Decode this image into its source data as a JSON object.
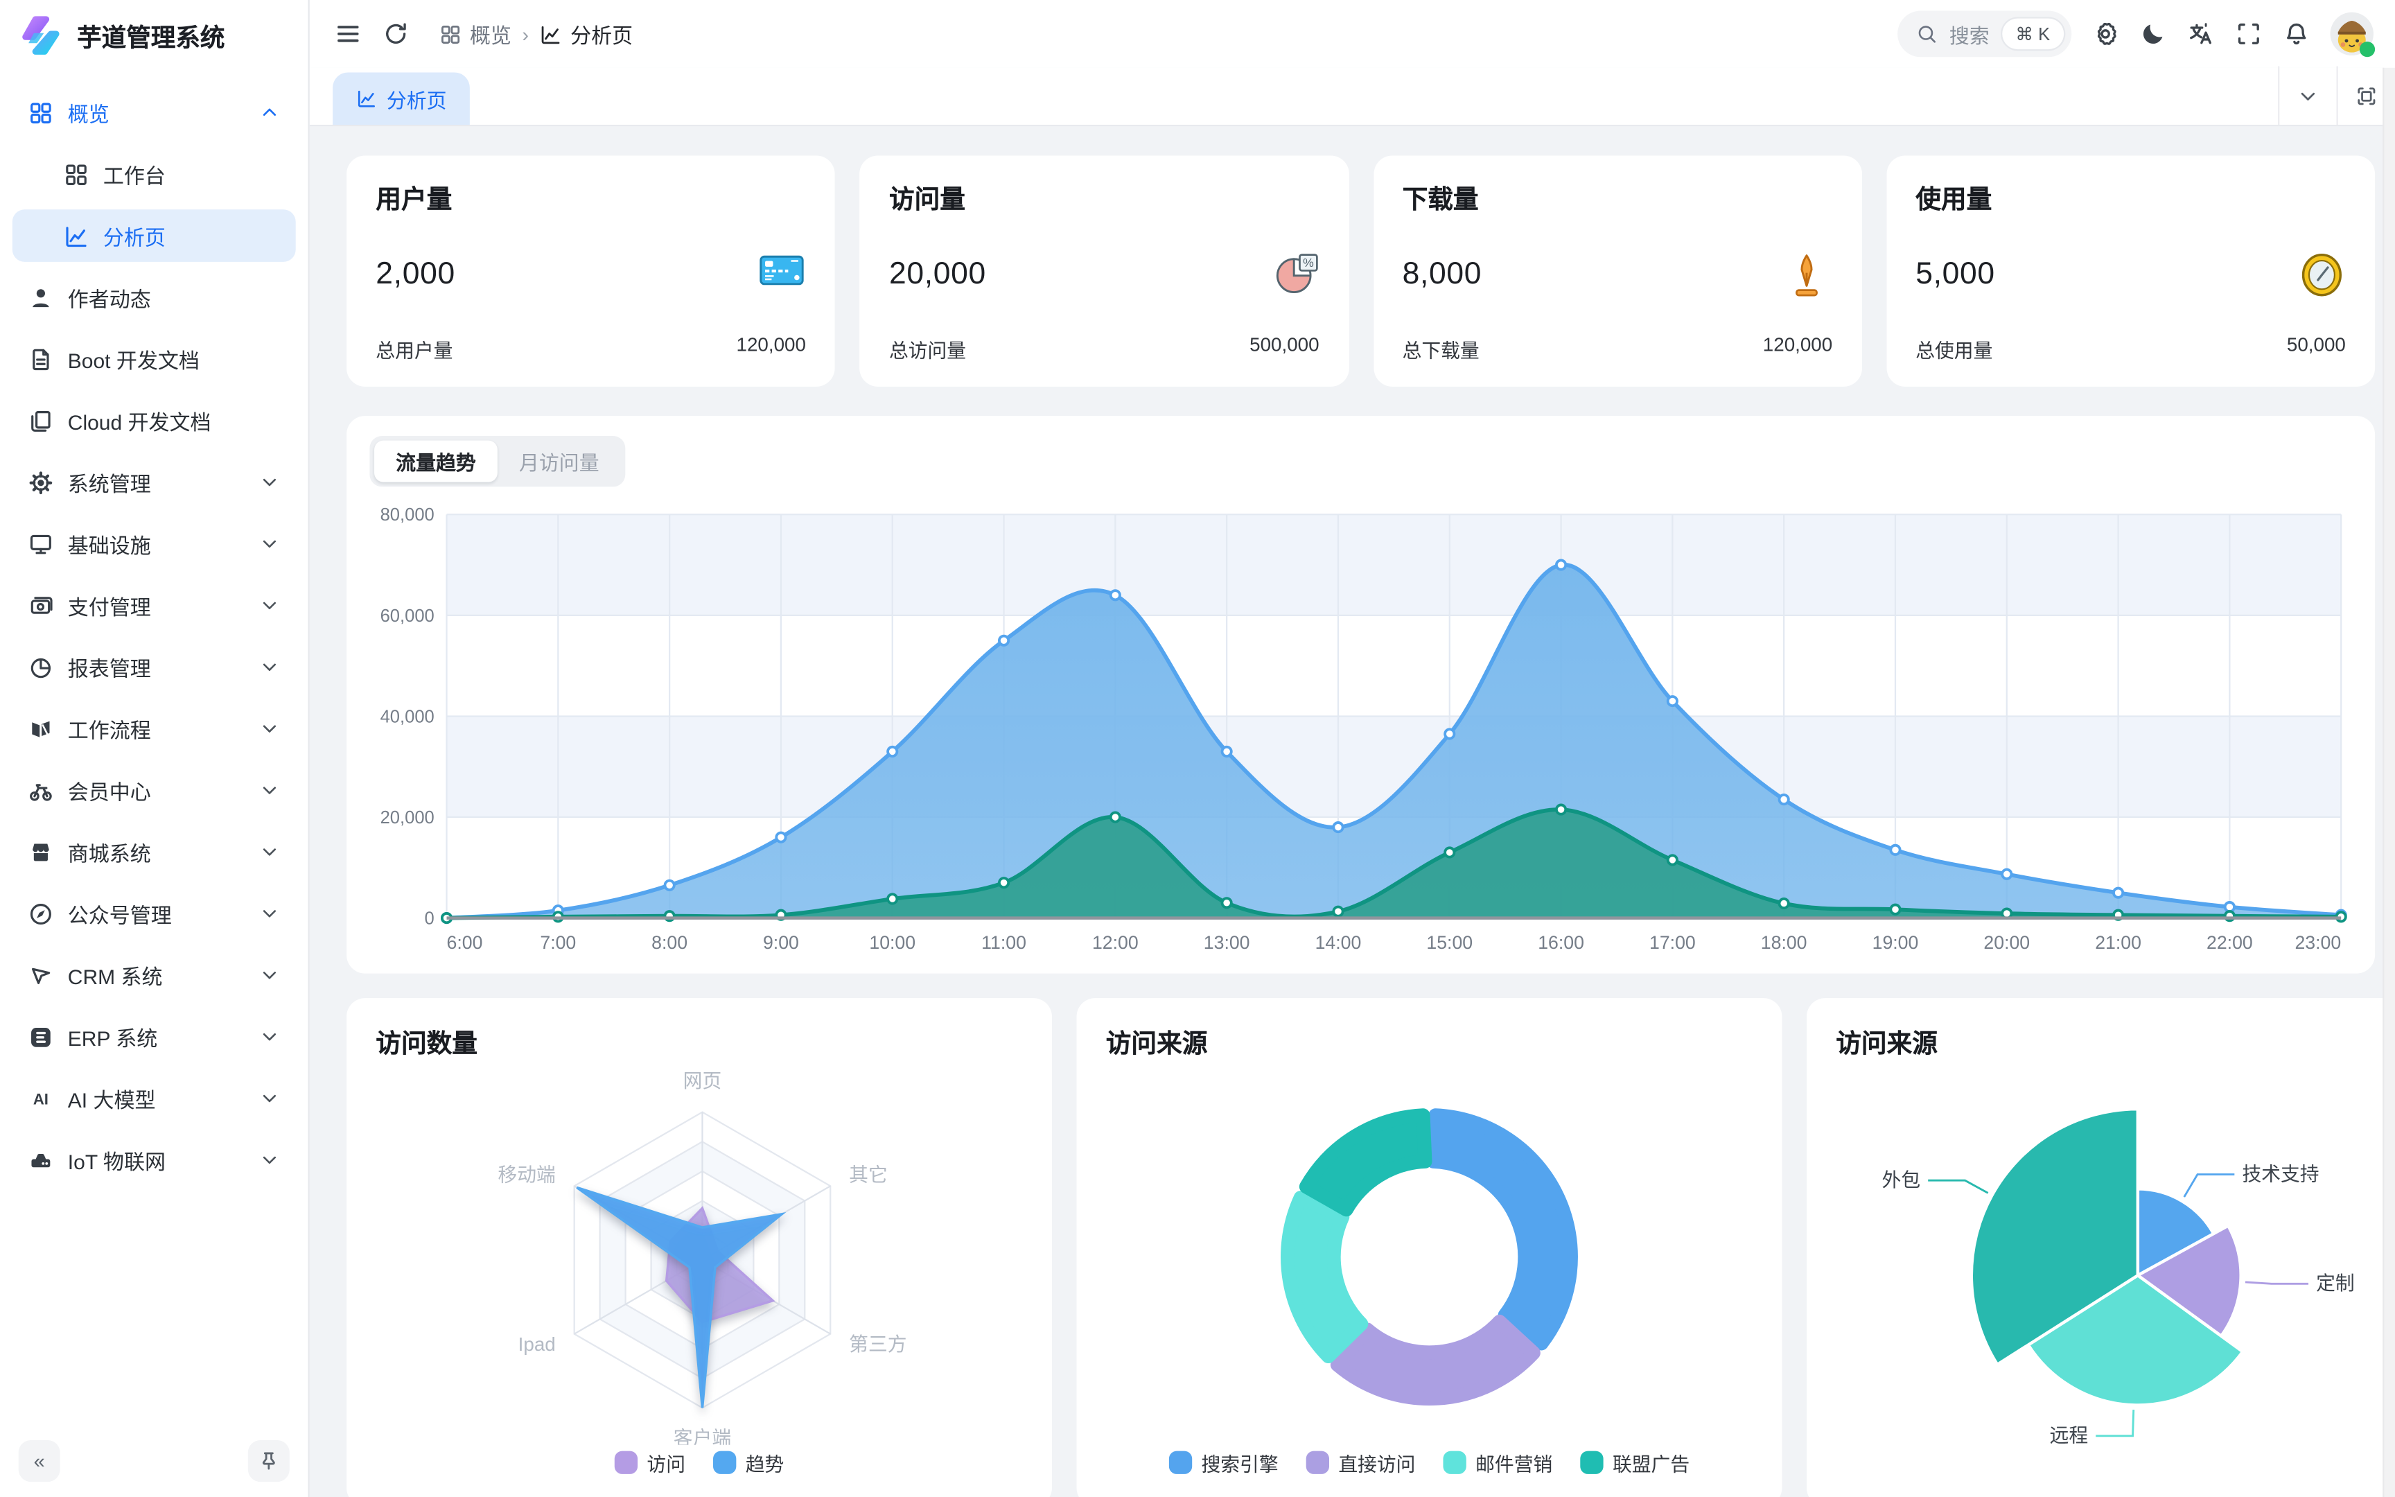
{
  "theme": {
    "accent": "#1b6ef3",
    "accent_soft": "#e3eefc",
    "tab_bg": "#dceafc",
    "page_bg": "#f1f3f6",
    "topbar_bg": "#ffffff",
    "sidebar_bg": "#ffffff",
    "status_dot": "#25c06a"
  },
  "app": {
    "title": "芋道管理系统",
    "logo_icon": "yudao-logo"
  },
  "sidebar": {
    "items": [
      {
        "label": "概览",
        "icon": "grid-icon",
        "expanded": true,
        "active_trail": true,
        "children": [
          {
            "label": "工作台",
            "icon": "workbench-icon"
          },
          {
            "label": "分析页",
            "icon": "analysis-chart-icon",
            "selected": true
          }
        ]
      },
      {
        "label": "作者动态",
        "icon": "user-icon"
      },
      {
        "label": "Boot 开发文档",
        "icon": "document-icon"
      },
      {
        "label": "Cloud 开发文档",
        "icon": "documents-icon"
      },
      {
        "label": "系统管理",
        "icon": "gear-icon",
        "collapsible": true
      },
      {
        "label": "基础设施",
        "icon": "monitor-icon",
        "collapsible": true
      },
      {
        "label": "支付管理",
        "icon": "payment-icon",
        "collapsible": true
      },
      {
        "label": "报表管理",
        "icon": "pie-icon",
        "collapsible": true
      },
      {
        "label": "工作流程",
        "icon": "workflow-icon",
        "collapsible": true
      },
      {
        "label": "会员中心",
        "icon": "member-bike-icon",
        "collapsible": true
      },
      {
        "label": "商城系统",
        "icon": "mall-icon",
        "collapsible": true
      },
      {
        "label": "公众号管理",
        "icon": "compass-icon",
        "collapsible": true
      },
      {
        "label": "CRM 系统",
        "icon": "crm-arrow-icon",
        "collapsible": true
      },
      {
        "label": "ERP 系统",
        "icon": "erp-badge-icon",
        "collapsible": true
      },
      {
        "label": "AI 大模型",
        "icon": "ai-icon",
        "collapsible": true
      },
      {
        "label": "IoT 物联网",
        "icon": "iot-device-icon",
        "collapsible": true
      }
    ],
    "collapse_label": "«",
    "pin_icon": "pin-icon"
  },
  "topbar": {
    "icons_left": [
      "menu-icon",
      "refresh-icon"
    ],
    "breadcrumb": [
      {
        "label": "概览",
        "icon": "grid-icon"
      },
      {
        "label": "分析页",
        "icon": "analysis-chart-icon"
      }
    ],
    "breadcrumb_separator": "›",
    "search": {
      "placeholder": "搜索",
      "shortcut": "⌘ K",
      "icon": "search-icon"
    },
    "icons_right": [
      "settings-gear-icon",
      "moon-icon",
      "translate-icon",
      "fullscreen-icon",
      "bell-icon"
    ],
    "avatar": {
      "name": "avatar",
      "status": "online"
    }
  },
  "tabbar": {
    "active_tab": {
      "label": "分析页",
      "icon": "analysis-chart-icon"
    },
    "tools": [
      "chevron-down-icon",
      "maximize-icon"
    ]
  },
  "stats": [
    {
      "title": "用户量",
      "value": "2,000",
      "icon": "credit-card-icon",
      "footer_label": "总用户量",
      "footer_value": "120,000"
    },
    {
      "title": "访问量",
      "value": "20,000",
      "icon": "pie-percent-icon",
      "footer_label": "总访问量",
      "footer_value": "500,000"
    },
    {
      "title": "下载量",
      "value": "8,000",
      "icon": "download-arrow-icon",
      "footer_label": "总下载量",
      "footer_value": "120,000"
    },
    {
      "title": "使用量",
      "value": "5,000",
      "icon": "clock-icon",
      "footer_label": "总使用量",
      "footer_value": "50,000"
    }
  ],
  "chart_data": [
    {
      "type": "area",
      "tabs": [
        "流量趋势",
        "月访问量"
      ],
      "active_tab": "流量趋势",
      "x": [
        "6:00",
        "7:00",
        "8:00",
        "9:00",
        "10:00",
        "11:00",
        "12:00",
        "13:00",
        "14:00",
        "15:00",
        "16:00",
        "17:00",
        "18:00",
        "19:00",
        "20:00",
        "21:00",
        "22:00",
        "23:00"
      ],
      "series": [
        {
          "name": "blue-series",
          "color": "#54a4ee",
          "fill": "#74b6ec",
          "values": [
            0,
            1500,
            6500,
            16000,
            33000,
            55000,
            64000,
            33000,
            18000,
            36500,
            70000,
            43000,
            23500,
            13500,
            8700,
            5000,
            2200,
            600
          ]
        },
        {
          "name": "green-series",
          "color": "#0f9482",
          "fill": "#2f9f90",
          "values": [
            0,
            250,
            400,
            600,
            3800,
            7000,
            20000,
            3000,
            1300,
            13000,
            21500,
            11500,
            2900,
            1700,
            900,
            600,
            400,
            250
          ]
        }
      ],
      "ylim": [
        0,
        80000
      ],
      "yticks": [
        0,
        20000,
        40000,
        60000,
        80000
      ],
      "grid": true,
      "legend_position": "none"
    },
    {
      "type": "radar",
      "title": "访问数量",
      "axes": [
        "网页",
        "其它",
        "第三方",
        "客户端",
        "Ipad",
        "移动端"
      ],
      "max": 100,
      "rings": 5,
      "series": [
        {
          "name": "访问",
          "color": "#b49ce4",
          "values": [
            35,
            12,
            55,
            42,
            28,
            25
          ]
        },
        {
          "name": "趋势",
          "color": "#54a8f0",
          "values": [
            22,
            62,
            10,
            100,
            10,
            98
          ]
        }
      ],
      "legend_position": "bottom"
    },
    {
      "type": "pie",
      "variant": "donut",
      "title": "访问来源",
      "slices": [
        {
          "name": "搜索引擎",
          "value": 1048,
          "color": "#54a4ee"
        },
        {
          "name": "直接访问",
          "value": 735,
          "color": "#ab9fe2"
        },
        {
          "name": "邮件营销",
          "value": 580,
          "color": "#5fe3dc"
        },
        {
          "name": "联盟广告",
          "value": 484,
          "color": "#1fbdb2"
        }
      ],
      "legend_position": "bottom"
    },
    {
      "type": "pie",
      "variant": "rose",
      "title": "访问来源",
      "slices": [
        {
          "name": "技术支持",
          "value": 17,
          "radius": 0.52,
          "color": "#55a6ee"
        },
        {
          "name": "定制",
          "value": 18,
          "radius": 0.62,
          "color": "#ae9ee3"
        },
        {
          "name": "远程",
          "value": 31,
          "radius": 0.78,
          "color": "#5fe0d5"
        },
        {
          "name": "外包",
          "value": 34,
          "radius": 1.0,
          "color": "#28b9ae"
        }
      ],
      "legend_position": "none"
    }
  ]
}
